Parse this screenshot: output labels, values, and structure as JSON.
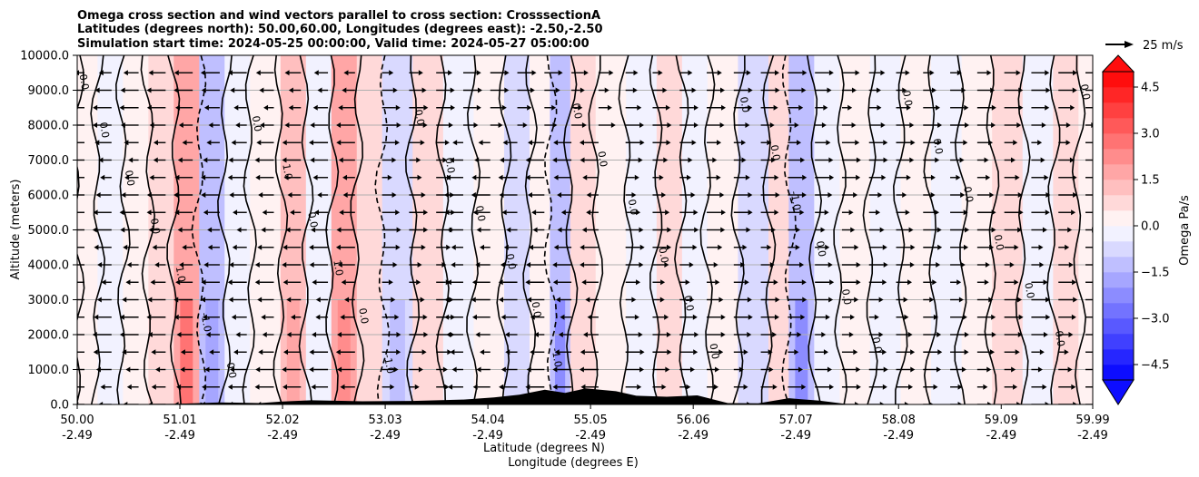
{
  "chart_data": {
    "type": "heatmap",
    "title_lines": [
      "Omega cross section and wind vectors parallel to cross section: CrosssectionA",
      "Latitudes (degrees north): 50.00,60.00, Longitudes (degrees east): -2.50,-2.50",
      "Simulation start time: 2024-05-25 00:00:00, Valid time: 2024-05-27 05:00:00"
    ],
    "ylabel": "Altitude (meters)",
    "xlabel_lines": [
      "Latitude (degrees N)",
      "Longitude (degrees E)"
    ],
    "x_ticks": [
      {
        "lat": "50.00",
        "lon": "-2.49"
      },
      {
        "lat": "51.01",
        "lon": "-2.49"
      },
      {
        "lat": "52.02",
        "lon": "-2.49"
      },
      {
        "lat": "53.03",
        "lon": "-2.49"
      },
      {
        "lat": "54.04",
        "lon": "-2.49"
      },
      {
        "lat": "55.05",
        "lon": "-2.49"
      },
      {
        "lat": "56.06",
        "lon": "-2.49"
      },
      {
        "lat": "57.07",
        "lon": "-2.49"
      },
      {
        "lat": "58.08",
        "lon": "-2.49"
      },
      {
        "lat": "59.09",
        "lon": "-2.49"
      },
      {
        "lat": "59.99",
        "lon": "-2.49"
      }
    ],
    "xlim": [
      50.0,
      59.99
    ],
    "y_ticks": [
      "0.0",
      "1000.0",
      "2000.0",
      "3000.0",
      "4000.0",
      "5000.0",
      "6000.0",
      "7000.0",
      "8000.0",
      "9000.0",
      "10000.0"
    ],
    "ylim": [
      0,
      10000
    ],
    "grid": "horizontal",
    "colorbar": {
      "label": "Omega Pa/s",
      "range": [
        -5.0,
        5.0
      ],
      "levels": 20,
      "extend": "both",
      "ticks": [
        "4.5",
        "3.0",
        "1.5",
        "0.0",
        "−1.5",
        "−3.0",
        "−4.5"
      ],
      "colors": {
        "negative": "#0000ff",
        "zero": "#ffffff",
        "positive": "#ff0000"
      }
    },
    "quiver_key": "25 m/s",
    "contour_labels": [
      "0.0",
      "1.0",
      "-1.0"
    ],
    "omega_bands": [
      {
        "lat": 50.0,
        "omega": 0.3
      },
      {
        "lat": 50.2,
        "omega": -0.4
      },
      {
        "lat": 50.45,
        "omega": 0.2
      },
      {
        "lat": 50.7,
        "omega": 0.6
      },
      {
        "lat": 50.95,
        "omega": 1.8
      },
      {
        "lat": 51.2,
        "omega": -1.3
      },
      {
        "lat": 51.45,
        "omega": -0.3
      },
      {
        "lat": 51.7,
        "omega": 0.4
      },
      {
        "lat": 52.0,
        "omega": 1.2
      },
      {
        "lat": 52.25,
        "omega": -0.5
      },
      {
        "lat": 52.5,
        "omega": 1.6
      },
      {
        "lat": 52.75,
        "omega": 0.5
      },
      {
        "lat": 53.0,
        "omega": -1.0
      },
      {
        "lat": 53.3,
        "omega": 0.6
      },
      {
        "lat": 53.6,
        "omega": -0.3
      },
      {
        "lat": 53.9,
        "omega": 0.4
      },
      {
        "lat": 54.2,
        "omega": -0.6
      },
      {
        "lat": 54.45,
        "omega": 0.3
      },
      {
        "lat": 54.65,
        "omega": -1.5
      },
      {
        "lat": 54.85,
        "omega": 0.9
      },
      {
        "lat": 55.1,
        "omega": 0.3
      },
      {
        "lat": 55.4,
        "omega": -0.4
      },
      {
        "lat": 55.7,
        "omega": 0.7
      },
      {
        "lat": 55.95,
        "omega": -0.2
      },
      {
        "lat": 56.2,
        "omega": 0.3
      },
      {
        "lat": 56.5,
        "omega": -0.7
      },
      {
        "lat": 56.8,
        "omega": 0.5
      },
      {
        "lat": 57.0,
        "omega": -1.4
      },
      {
        "lat": 57.25,
        "omega": -0.4
      },
      {
        "lat": 57.5,
        "omega": 0.4
      },
      {
        "lat": 57.8,
        "omega": -0.3
      },
      {
        "lat": 58.1,
        "omega": 0.2
      },
      {
        "lat": 58.4,
        "omega": -0.5
      },
      {
        "lat": 58.7,
        "omega": 0.3
      },
      {
        "lat": 59.0,
        "omega": 0.8
      },
      {
        "lat": 59.3,
        "omega": -0.2
      },
      {
        "lat": 59.6,
        "omega": 0.5
      },
      {
        "lat": 59.85,
        "omega": 0.2
      }
    ],
    "terrain_m": [
      {
        "lat": 50.0,
        "h": 0
      },
      {
        "lat": 51.0,
        "h": 20
      },
      {
        "lat": 51.4,
        "h": 60
      },
      {
        "lat": 51.8,
        "h": 40
      },
      {
        "lat": 52.0,
        "h": 80
      },
      {
        "lat": 52.3,
        "h": 120
      },
      {
        "lat": 52.8,
        "h": 90
      },
      {
        "lat": 53.3,
        "h": 100
      },
      {
        "lat": 53.8,
        "h": 140
      },
      {
        "lat": 54.1,
        "h": 200
      },
      {
        "lat": 54.35,
        "h": 280
      },
      {
        "lat": 54.6,
        "h": 420
      },
      {
        "lat": 54.8,
        "h": 330
      },
      {
        "lat": 55.0,
        "h": 460
      },
      {
        "lat": 55.3,
        "h": 380
      },
      {
        "lat": 55.5,
        "h": 250
      },
      {
        "lat": 55.8,
        "h": 220
      },
      {
        "lat": 56.1,
        "h": 260
      },
      {
        "lat": 56.4,
        "h": 40
      },
      {
        "lat": 56.7,
        "h": 30
      },
      {
        "lat": 57.0,
        "h": 180
      },
      {
        "lat": 57.3,
        "h": 110
      },
      {
        "lat": 57.6,
        "h": 0
      },
      {
        "lat": 59.99,
        "h": 0
      }
    ]
  }
}
